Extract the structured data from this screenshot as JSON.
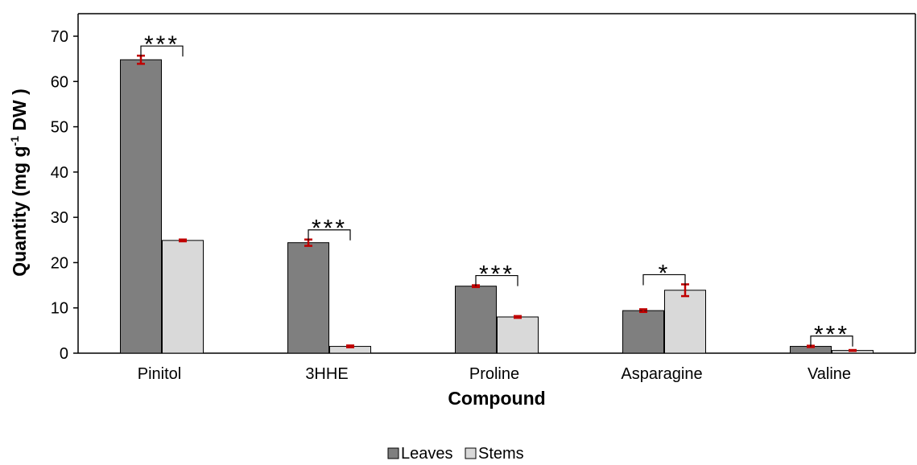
{
  "chart_data": {
    "type": "bar",
    "title": "",
    "xlabel": "Compound",
    "ylabel_main": "Quantity (mg g",
    "ylabel_sup": "-1",
    "ylabel_tail": " DW )",
    "ylim": [
      0,
      70
    ],
    "yticks": [
      0,
      10,
      20,
      30,
      40,
      50,
      60,
      70
    ],
    "grid": false,
    "legend_position": "bottom-center",
    "categories": [
      "Pinitol",
      "3HHE",
      "Proline",
      "Asparagine",
      "Valine"
    ],
    "series": [
      {
        "name": "Leaves",
        "color": "#7f7f7f",
        "values": [
          64.8,
          24.4,
          14.8,
          9.4,
          1.5
        ],
        "errors": [
          0.9,
          0.7,
          0.2,
          0.3,
          0.15
        ]
      },
      {
        "name": "Stems",
        "color": "#d9d9d9",
        "values": [
          24.9,
          1.5,
          8.0,
          13.9,
          0.6
        ],
        "errors": [
          0.2,
          0.2,
          0.2,
          1.3,
          0.1
        ]
      }
    ],
    "error_bar_color": "#c00000",
    "significance": [
      "***",
      "***",
      "***",
      "*",
      "***"
    ]
  }
}
